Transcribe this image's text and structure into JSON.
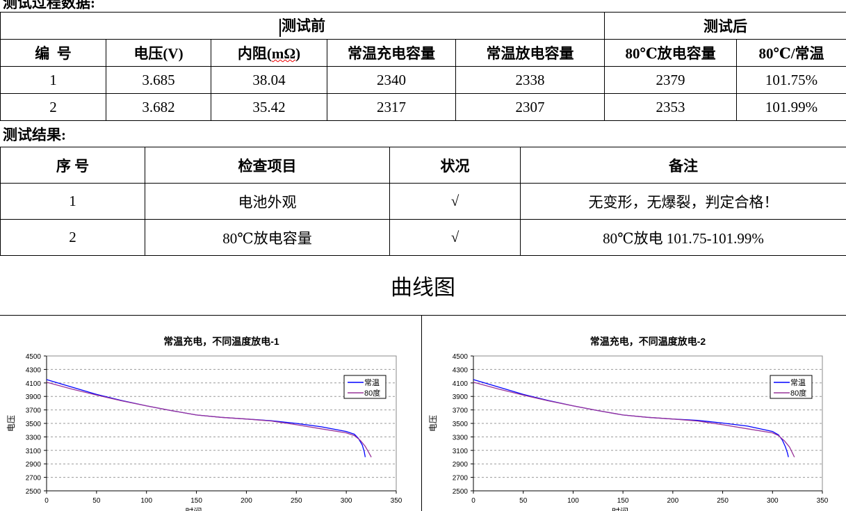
{
  "section_process_title": "测试过程数据:",
  "process_table": {
    "group_headers": [
      "测试前",
      "测试后"
    ],
    "headers": [
      "编  号",
      "电压(V)",
      "内阻(mΩ)",
      "常温充电容量",
      "常温放电容量",
      "80℃放电容量",
      "80℃/常温"
    ],
    "rows": [
      [
        "1",
        "3.685",
        "38.04",
        "2340",
        "2338",
        "2379",
        "101.75%"
      ],
      [
        "2",
        "3.682",
        "35.42",
        "2317",
        "2307",
        "2353",
        "101.99%"
      ]
    ]
  },
  "section_result_title": "测试结果:",
  "result_table": {
    "headers": [
      "序 号",
      "检查项目",
      "状况",
      "备注"
    ],
    "rows": [
      [
        "1",
        "电池外观",
        "√",
        "无变形，无爆裂，判定合格！"
      ],
      [
        "2",
        "80℃放电容量",
        "√",
        "80℃放电 101.75-101.99%"
      ]
    ]
  },
  "curve_title": "曲线图",
  "chart_data": [
    {
      "type": "line",
      "title": "常温充电，不同温度放电-1",
      "xlabel": "时间",
      "ylabel": "电压",
      "xlim": [
        0,
        350
      ],
      "ylim": [
        2500,
        4500
      ],
      "xticks": [
        "0",
        "50",
        "100",
        "150",
        "200",
        "250",
        "300",
        "350"
      ],
      "yticks": [
        "2500",
        "2700",
        "2900",
        "3100",
        "3300",
        "3500",
        "3700",
        "3900",
        "4100",
        "4300",
        "4500"
      ],
      "grid": "horizontal dashed",
      "legend": "top-right",
      "series": [
        {
          "name": "常温",
          "color": "#0000ff",
          "x": [
            0,
            25,
            50,
            75,
            100,
            125,
            150,
            175,
            200,
            225,
            250,
            275,
            300,
            308,
            312,
            316,
            318,
            319
          ],
          "y": [
            4150,
            4040,
            3930,
            3840,
            3760,
            3690,
            3625,
            3590,
            3565,
            3540,
            3500,
            3450,
            3380,
            3340,
            3280,
            3180,
            3080,
            3000
          ]
        },
        {
          "name": "80度",
          "color": "#993399",
          "x": [
            0,
            25,
            50,
            75,
            100,
            125,
            150,
            175,
            200,
            225,
            250,
            275,
            300,
            308,
            314,
            319,
            322,
            325
          ],
          "y": [
            4110,
            4010,
            3920,
            3835,
            3760,
            3690,
            3625,
            3590,
            3565,
            3535,
            3480,
            3420,
            3360,
            3320,
            3250,
            3160,
            3080,
            3000
          ]
        }
      ]
    },
    {
      "type": "line",
      "title": "常温充电，不同温度放电-2",
      "xlabel": "时间",
      "ylabel": "电压",
      "xlim": [
        0,
        350
      ],
      "ylim": [
        2500,
        4500
      ],
      "xticks": [
        "0",
        "50",
        "100",
        "150",
        "200",
        "250",
        "300",
        "350"
      ],
      "yticks": [
        "2500",
        "2700",
        "2900",
        "3100",
        "3300",
        "3500",
        "3700",
        "3900",
        "4100",
        "4300",
        "4500"
      ],
      "grid": "horizontal dashed",
      "legend": "top-right",
      "series": [
        {
          "name": "常温",
          "color": "#0000ff",
          "x": [
            0,
            25,
            50,
            75,
            100,
            125,
            150,
            175,
            200,
            225,
            250,
            275,
            300,
            306,
            310,
            313,
            315,
            316
          ],
          "y": [
            4150,
            4040,
            3930,
            3840,
            3760,
            3690,
            3625,
            3590,
            3565,
            3545,
            3505,
            3460,
            3380,
            3330,
            3250,
            3150,
            3060,
            3000
          ]
        },
        {
          "name": "80度",
          "color": "#993399",
          "x": [
            0,
            25,
            50,
            75,
            100,
            125,
            150,
            175,
            200,
            225,
            250,
            275,
            300,
            306,
            312,
            317,
            320,
            322
          ],
          "y": [
            4110,
            4010,
            3920,
            3835,
            3760,
            3690,
            3625,
            3590,
            3565,
            3535,
            3480,
            3420,
            3360,
            3320,
            3240,
            3150,
            3060,
            3000
          ]
        }
      ]
    }
  ]
}
